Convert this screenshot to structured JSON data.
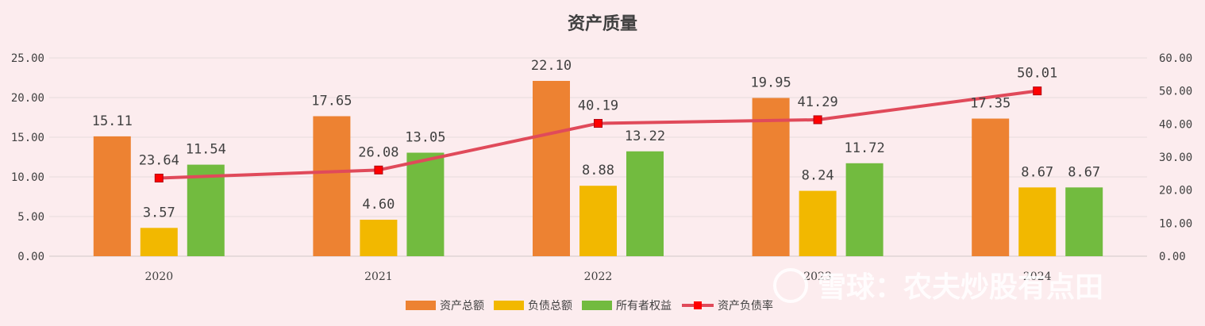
{
  "chart_data": {
    "type": "bar",
    "title": "资产质量",
    "categories": [
      "2020",
      "2021",
      "2022",
      "2023",
      "2024"
    ],
    "series": [
      {
        "name": "资产总额",
        "type": "bar",
        "axis": "left",
        "color": "#ed8232",
        "values": [
          15.11,
          17.65,
          22.1,
          19.95,
          17.35
        ]
      },
      {
        "name": "负债总额",
        "type": "bar",
        "axis": "left",
        "color": "#f2b800",
        "values": [
          3.57,
          4.6,
          8.88,
          8.24,
          8.67
        ]
      },
      {
        "name": "所有者权益",
        "type": "bar",
        "axis": "left",
        "color": "#72bb3f",
        "values": [
          11.54,
          13.05,
          13.22,
          11.72,
          8.67
        ]
      },
      {
        "name": "资产负债率",
        "type": "line",
        "axis": "right",
        "color": "#e04a5a",
        "marker_color": "#ff0000",
        "values": [
          23.64,
          26.08,
          40.19,
          41.29,
          50.01
        ]
      }
    ],
    "y_left": {
      "min": 0,
      "max": 25,
      "step": 5,
      "ticks": [
        "0.00",
        "5.00",
        "10.00",
        "15.00",
        "20.00",
        "25.00"
      ]
    },
    "y_right": {
      "min": 0,
      "max": 60,
      "step": 10,
      "ticks": [
        "0.00",
        "10.00",
        "20.00",
        "30.00",
        "40.00",
        "50.00",
        "60.00"
      ]
    },
    "grid": true,
    "legend_position": "bottom"
  },
  "watermark": {
    "text": "雪球：农夫炒股有点田"
  }
}
